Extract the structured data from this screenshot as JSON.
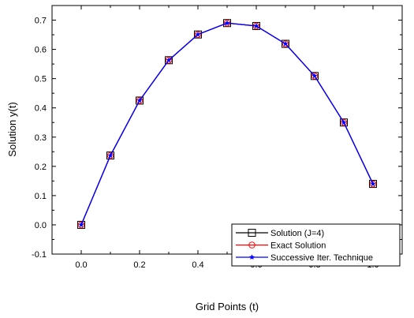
{
  "chart_data": {
    "type": "line",
    "xlabel": "Grid Points (t)",
    "ylabel": "Solution y(t)",
    "xlim": [
      -0.1,
      1.1
    ],
    "ylim": [
      -0.1,
      0.75
    ],
    "x_ticks": [
      "0.0",
      "0.2",
      "0.4",
      "0.6",
      "0.8",
      "1.0"
    ],
    "y_ticks": [
      "-0.1",
      "0.0",
      "0.1",
      "0.2",
      "0.3",
      "0.4",
      "0.5",
      "0.6",
      "0.7"
    ],
    "grid": false,
    "legend_position": "bottom-right",
    "x": [
      0.0,
      0.1,
      0.2,
      0.3,
      0.4,
      0.5,
      0.6,
      0.7,
      0.8,
      0.9,
      1.0
    ],
    "series": [
      {
        "name": "Solution (J=4)",
        "color": "#000000",
        "marker": "square",
        "values": [
          0.0,
          0.237,
          0.425,
          0.563,
          0.651,
          0.69,
          0.68,
          0.619,
          0.509,
          0.35,
          0.14
        ]
      },
      {
        "name": "Exact Solution",
        "color": "#ff0000",
        "marker": "circle",
        "values": [
          0.0,
          0.237,
          0.425,
          0.563,
          0.651,
          0.69,
          0.68,
          0.619,
          0.509,
          0.35,
          0.14
        ]
      },
      {
        "name": "Successive Iter. Technique",
        "color": "#0000ff",
        "marker": "star",
        "values": [
          0.0,
          0.237,
          0.425,
          0.563,
          0.651,
          0.69,
          0.68,
          0.619,
          0.509,
          0.35,
          0.14
        ]
      }
    ]
  }
}
